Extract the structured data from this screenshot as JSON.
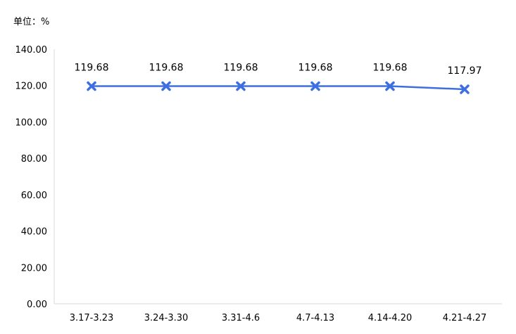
{
  "chart_data": {
    "type": "line",
    "unit_label": "单位：%",
    "categories": [
      "3.17-3.23",
      "3.24-3.30",
      "3.31-4.6",
      "4.7-4.13",
      "4.14-4.20",
      "4.21-4.27"
    ],
    "series": [
      {
        "values": [
          119.68,
          119.68,
          119.68,
          119.68,
          119.68,
          117.97
        ],
        "color": "#3E6FE0",
        "marker": "x"
      }
    ],
    "data_labels": [
      "119.68",
      "119.68",
      "119.68",
      "119.68",
      "119.68",
      "117.97"
    ],
    "y_ticks": [
      "0.00",
      "20.00",
      "40.00",
      "60.00",
      "80.00",
      "100.00",
      "120.00",
      "140.00"
    ],
    "ylim": [
      0,
      140
    ],
    "grid": false,
    "legend": "none"
  }
}
